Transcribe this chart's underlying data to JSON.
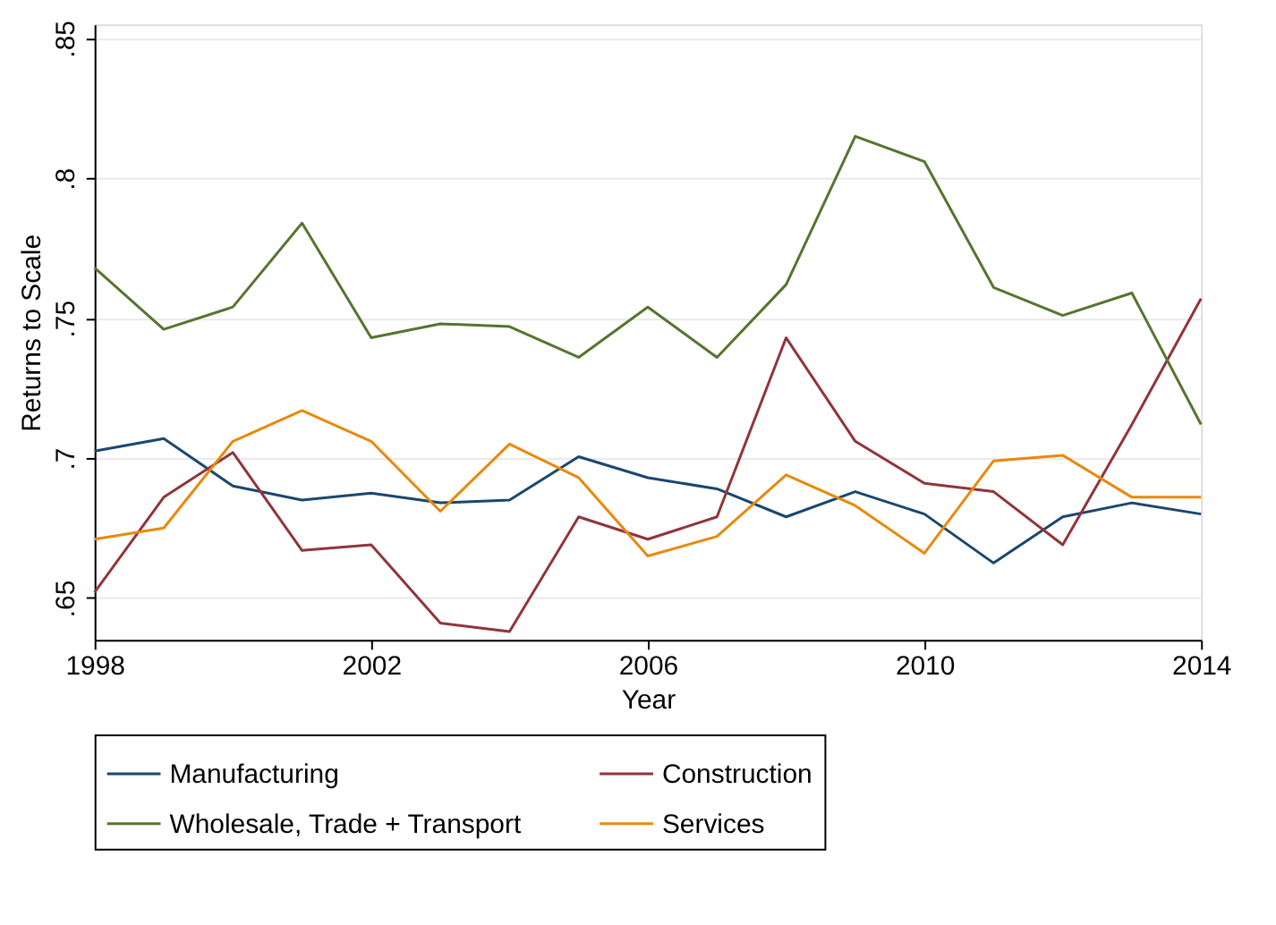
{
  "chart_data": {
    "type": "line",
    "xlabel": "Year",
    "ylabel": "Returns to Scale",
    "x": [
      1998,
      1999,
      2000,
      2001,
      2002,
      2003,
      2004,
      2005,
      2006,
      2007,
      2008,
      2009,
      2010,
      2011,
      2012,
      2013,
      2014
    ],
    "series": [
      {
        "name": "Manufacturing",
        "color": "#1a476f",
        "values": [
          0.7025,
          0.707,
          0.69,
          0.685,
          0.6875,
          0.684,
          0.685,
          0.7005,
          0.693,
          0.689,
          0.679,
          0.688,
          0.68,
          0.6625,
          0.679,
          0.684,
          0.68
        ]
      },
      {
        "name": "Construction",
        "color": "#90353b",
        "values": [
          0.652,
          0.686,
          0.702,
          0.667,
          0.669,
          0.641,
          0.638,
          0.679,
          0.671,
          0.679,
          0.743,
          0.706,
          0.691,
          0.688,
          0.669,
          0.712,
          0.757
        ]
      },
      {
        "name": "Wholesale, Trade + Transport",
        "color": "#55752f",
        "values": [
          0.768,
          0.746,
          0.754,
          0.784,
          0.743,
          0.748,
          0.747,
          0.736,
          0.754,
          0.736,
          0.762,
          0.815,
          0.806,
          0.761,
          0.751,
          0.759,
          0.712
        ]
      },
      {
        "name": "Services",
        "color": "#e8890c",
        "values": [
          0.671,
          0.675,
          0.706,
          0.717,
          0.706,
          0.681,
          0.705,
          0.693,
          0.665,
          0.672,
          0.694,
          0.683,
          0.666,
          0.699,
          0.701,
          0.686,
          0.686
        ]
      }
    ],
    "xlim": [
      1998,
      2014
    ],
    "xticks": [
      1998,
      2002,
      2006,
      2010,
      2014
    ],
    "ylim": [
      0.635,
      0.855
    ],
    "yticks": [
      {
        "value": 0.65,
        "label": ".65"
      },
      {
        "value": 0.7,
        "label": ".7"
      },
      {
        "value": 0.75,
        "label": ".75"
      },
      {
        "value": 0.8,
        "label": ".8"
      },
      {
        "value": 0.85,
        "label": ".85"
      }
    ],
    "grid": "y",
    "legend": "bottom",
    "marker": "none",
    "line_style": "solid"
  }
}
